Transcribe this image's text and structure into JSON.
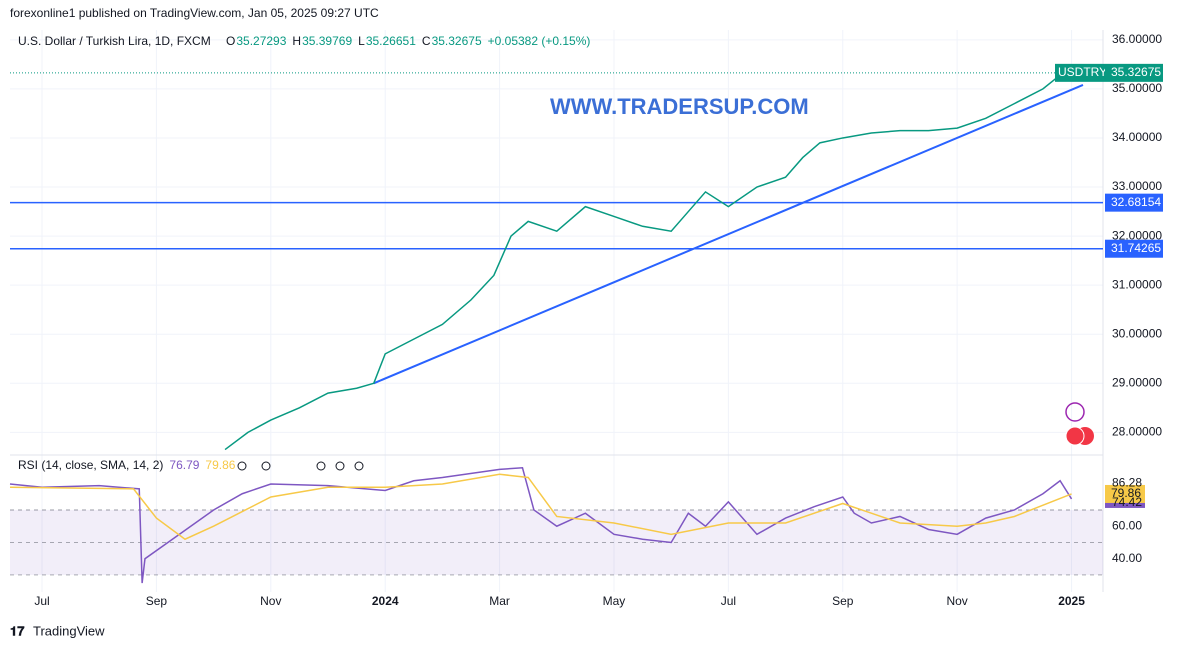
{
  "header": {
    "published": "forexonline1 published on TradingView.com, Jan 05, 2025 09:27 UTC",
    "symbol": "U.S. Dollar / Turkish Lira, 1D, FXCM",
    "ohlc_labels": [
      "O",
      "H",
      "L",
      "C"
    ],
    "ohlc_values": [
      35.27293,
      35.39769,
      35.26651,
      35.32675
    ],
    "change": "+0.05382 (+0.15%)",
    "watermark": "WWW.TRADERSUP.COM",
    "rsi_legend": "RSI (14, close, SMA, 14, 2)"
  },
  "footer": {
    "brand": "TradingView"
  },
  "chart_data": [
    {
      "type": "line",
      "xlim": [
        -0.56,
        18.55
      ],
      "ylim": [
        27.6,
        36.2
      ],
      "xticks": [
        {
          "value": 0,
          "label": "Jul"
        },
        {
          "value": 2,
          "label": "Sep"
        },
        {
          "value": 4,
          "label": "Nov"
        },
        {
          "value": 6,
          "label": "2024"
        },
        {
          "value": 8,
          "label": "Mar"
        },
        {
          "value": 10,
          "label": "May"
        },
        {
          "value": 12,
          "label": "Jul"
        },
        {
          "value": 14,
          "label": "Sep"
        },
        {
          "value": 16,
          "label": "Nov"
        },
        {
          "value": 18,
          "label": "2025"
        }
      ],
      "yticks": [
        {
          "value": 28,
          "label": "28.00000"
        },
        {
          "value": 29,
          "label": "29.00000"
        },
        {
          "value": 30,
          "label": "30.00000"
        },
        {
          "value": 31,
          "label": "31.00000"
        },
        {
          "value": 32,
          "label": "32.00000"
        },
        {
          "value": 33,
          "label": "33.00000"
        },
        {
          "value": 34,
          "label": "34.00000"
        },
        {
          "value": 35,
          "label": "35.00000"
        },
        {
          "value": 36,
          "label": "36.00000"
        }
      ],
      "grid": true,
      "levels": [
        32.68154,
        31.74265
      ],
      "level_color": "#2962ff",
      "trendline": {
        "x": [
          5.8,
          18.2
        ],
        "y": [
          29.0,
          35.08
        ],
        "color": "#2962ff"
      },
      "x": [
        3.2,
        3.6,
        4.0,
        4.5,
        5.0,
        5.5,
        5.8,
        6.0,
        6.5,
        7.0,
        7.5,
        7.9,
        8.2,
        8.5,
        9.0,
        9.5,
        10.0,
        10.5,
        11.0,
        11.3,
        11.6,
        12.0,
        12.5,
        13.0,
        13.3,
        13.6,
        14.0,
        14.5,
        15.0,
        15.5,
        16.0,
        16.5,
        17.0,
        17.5,
        17.85
      ],
      "series": [
        {
          "name": "USDTRY",
          "color": "#089981",
          "values": [
            27.65,
            28.0,
            28.25,
            28.5,
            28.8,
            28.9,
            29.0,
            29.6,
            29.9,
            30.2,
            30.7,
            31.2,
            32.0,
            32.3,
            32.1,
            32.6,
            32.4,
            32.2,
            32.1,
            32.5,
            32.9,
            32.6,
            33.0,
            33.2,
            33.6,
            33.9,
            34.0,
            34.1,
            34.15,
            34.15,
            34.2,
            34.4,
            34.7,
            35.0,
            35.32675
          ]
        }
      ]
    },
    {
      "type": "line",
      "xlim": [
        -0.56,
        18.55
      ],
      "ylim": [
        19.5,
        102
      ],
      "yticks": [
        {
          "value": 60,
          "label": "60.00"
        },
        {
          "value": 40,
          "label": "40.00"
        }
      ],
      "bands": [
        70,
        50,
        30
      ],
      "axis_labels": [
        86.28,
        74.42
      ],
      "series": [
        {
          "color": "#7e57c2",
          "x": [
            -0.56,
            0,
            1,
            1.7,
            1.75,
            1.8,
            2.2,
            3,
            3.5,
            4,
            5,
            6,
            6.5,
            7,
            8,
            8.4,
            8.6,
            9,
            9.5,
            10,
            10.5,
            11,
            11.3,
            11.6,
            12,
            12.5,
            13,
            13.5,
            14,
            14.2,
            14.5,
            15,
            15.5,
            16,
            16.5,
            17,
            17.5,
            17.8,
            18
          ],
          "values": [
            86,
            84,
            85,
            83,
            25,
            40,
            50,
            70,
            80,
            86,
            85,
            82,
            88,
            90,
            95,
            96,
            70,
            60,
            68,
            55,
            52,
            50,
            68,
            60,
            75,
            55,
            65,
            72,
            78,
            68,
            62,
            66,
            58,
            55,
            65,
            70,
            80,
            88,
            76.79
          ]
        },
        {
          "color": "#f7c948",
          "x": [
            -0.56,
            1.6,
            2,
            2.5,
            3,
            4,
            5,
            6,
            7,
            8,
            8.5,
            9,
            10,
            11,
            12,
            13,
            14,
            14.5,
            15,
            16,
            16.5,
            17,
            18
          ],
          "values": [
            84,
            83,
            65,
            52,
            60,
            78,
            84,
            84,
            86,
            92,
            90,
            66,
            62,
            55,
            62,
            62,
            74,
            68,
            62,
            60,
            62,
            66,
            79.86
          ]
        }
      ]
    }
  ]
}
